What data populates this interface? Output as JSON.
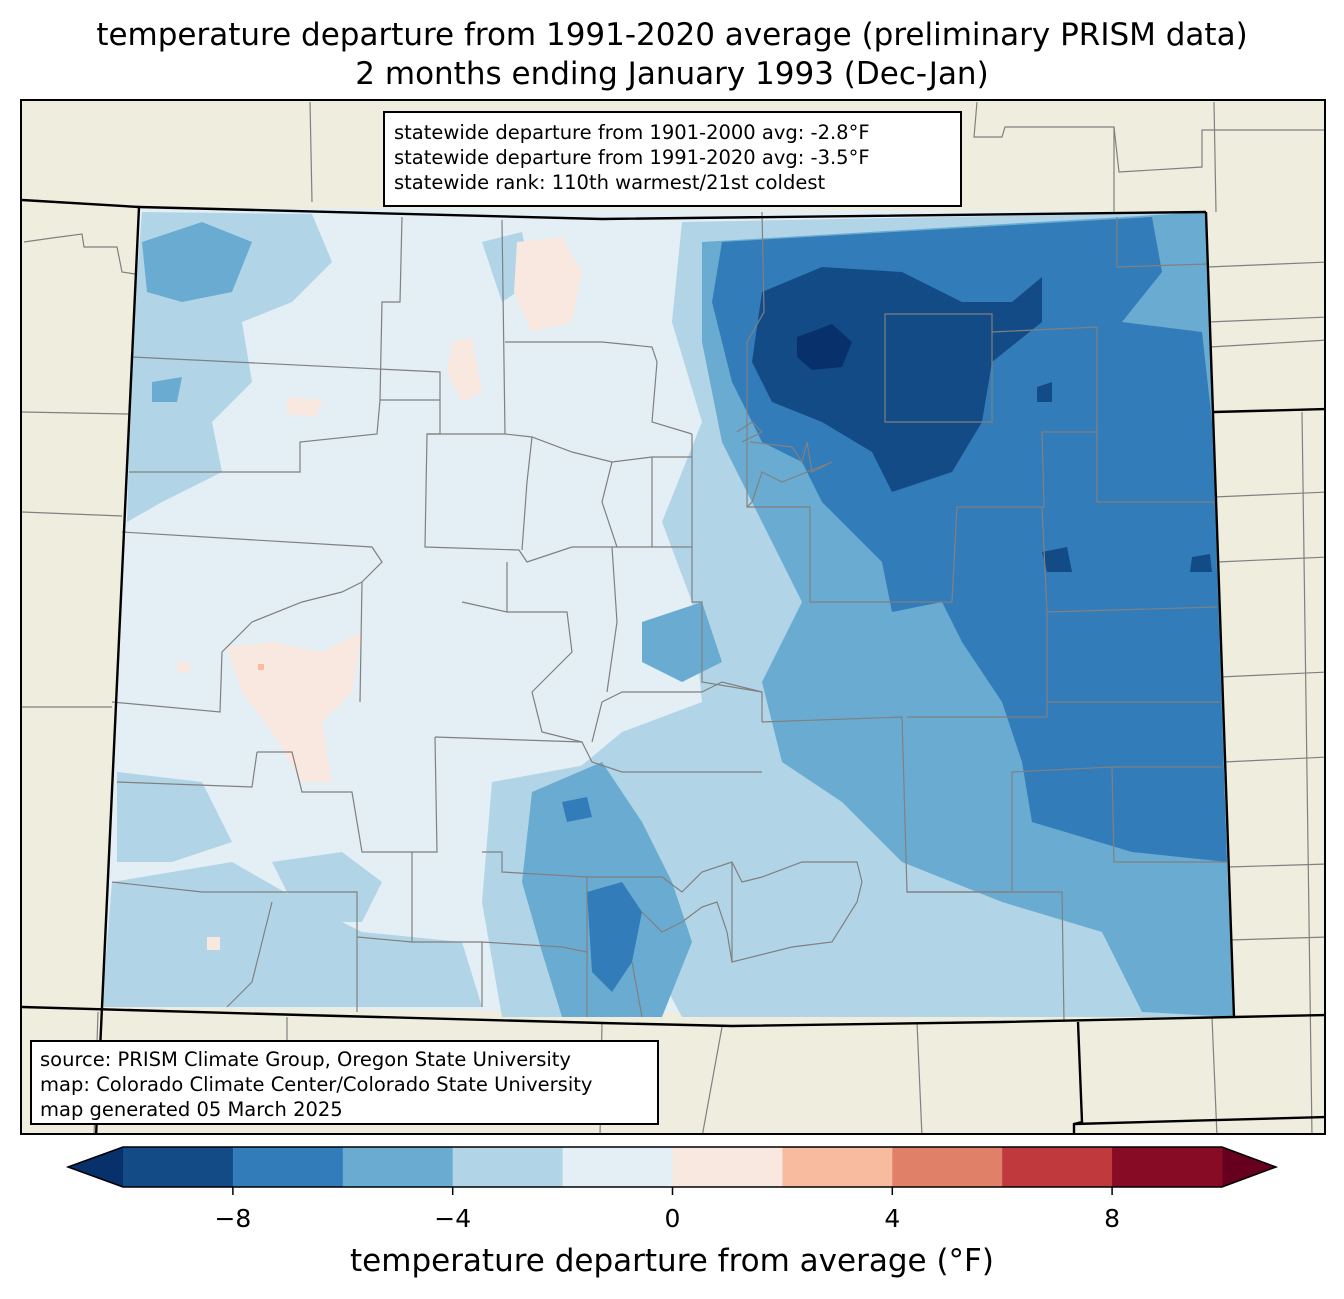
{
  "title": {
    "line1": "temperature departure from 1991-2020 average (preliminary PRISM data)",
    "line2": "2 months ending January 1993 (Dec-Jan)"
  },
  "stats": {
    "line1": "statewide departure from 1901-2000 avg: -2.8°F",
    "line2": "statewide departure from 1991-2020 avg: -3.5°F",
    "line3": "statewide rank: 110th warmest/21st coldest"
  },
  "source": {
    "line1": "source: PRISM Climate Group, Oregon State University",
    "line2": "map: Colorado Climate Center/Colorado State University",
    "line3": "map generated 05 March 2025"
  },
  "colorbar": {
    "label": "temperature departure from average (°F)",
    "bins": [
      {
        "from": -10,
        "to": -8,
        "color": "#134b87"
      },
      {
        "from": -8,
        "to": -6,
        "color": "#327cba"
      },
      {
        "from": -6,
        "to": -4,
        "color": "#6aacd1"
      },
      {
        "from": -4,
        "to": -2,
        "color": "#b1d5e7"
      },
      {
        "from": -2,
        "to": 0,
        "color": "#e3eef5"
      },
      {
        "from": 0,
        "to": 2,
        "color": "#f9e8df"
      },
      {
        "from": 2,
        "to": 4,
        "color": "#f8bba0"
      },
      {
        "from": 4,
        "to": 6,
        "color": "#e08068"
      },
      {
        "from": 6,
        "to": 8,
        "color": "#c03a3d"
      },
      {
        "from": 8,
        "to": 10,
        "color": "#870b25"
      }
    ],
    "under_color": "#08306b",
    "over_color": "#67001f",
    "ticks": [
      {
        "value": -8,
        "label": "−8"
      },
      {
        "value": -4,
        "label": "−4"
      },
      {
        "value": 0,
        "label": "0"
      },
      {
        "value": 4,
        "label": "4"
      },
      {
        "value": 8,
        "label": "8"
      }
    ]
  },
  "map": {
    "land_color": "#efedde",
    "state_border_color": "#000000",
    "county_line_color": "#808080"
  }
}
